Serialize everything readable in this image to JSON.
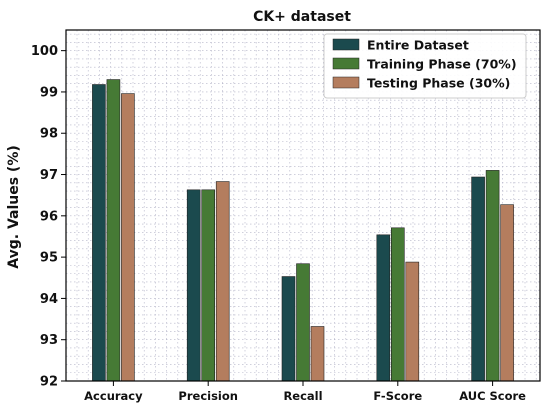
{
  "colors": {
    "series": [
      "#1b4a4e",
      "#467a35",
      "#b47d5e"
    ],
    "grid": "#b4b4c8",
    "axis": "#000000"
  },
  "chart_data": {
    "type": "bar",
    "title": "CK+ dataset",
    "xlabel": "",
    "ylabel": "Avg. Values (%)",
    "ylim": [
      92,
      100.5
    ],
    "yticks": [
      "92",
      "93",
      "94",
      "95",
      "96",
      "97",
      "98",
      "99",
      "100"
    ],
    "categories": [
      "Accuracy",
      "Precision",
      "Recall",
      "F-Score",
      "AUC Score"
    ],
    "series": [
      {
        "name": "Entire Dataset",
        "values": [
          99.18,
          96.63,
          94.53,
          95.54,
          96.94
        ]
      },
      {
        "name": "Training Phase (70%)",
        "values": [
          99.3,
          96.63,
          94.84,
          95.71,
          97.1
        ]
      },
      {
        "name": "Testing Phase (30%)",
        "values": [
          98.96,
          96.83,
          93.32,
          94.88,
          96.27
        ]
      }
    ],
    "grid": true,
    "legend_position": "top-right"
  }
}
